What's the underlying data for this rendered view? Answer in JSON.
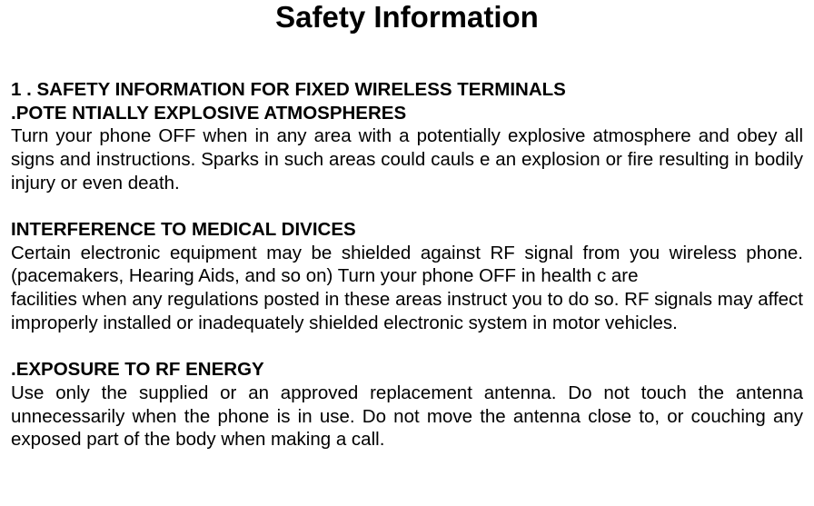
{
  "title": "Safety Information",
  "section1": {
    "header1": "1 . SAFETY INFORMATION FOR FIXED WIRELESS TERMINALS",
    "header2": ".POTE NTIALLY EXPLOSIVE ATMOSPHERES",
    "body": "Turn your phone OFF when in any area with a potentially explosive atmosphere and obey all signs and instructions. Sparks in such areas could cauls e an explosion or fire resulting in bodily injury or even death."
  },
  "section2": {
    "header": "INTERFERENCE TO MEDICAL DIVICES",
    "body1": "Certain electronic equipment may be shielded against RF signal from you wireless phone. (pacemakers, Hearing Aids, and so on) Turn your phone OFF in health c are",
    "body2": "facilities when any regulations posted in these areas instruct you to do so. RF signals may affect improperly installed or inadequately shielded electronic system in motor vehicles."
  },
  "section3": {
    "header": ".EXPOSURE TO RF ENERGY",
    "body": "Use only the supplied or an approved replacement antenna. Do not touch the antenna unnecessarily when the phone is in use. Do not move the antenna close to, or couching any exposed part of the body when making a call."
  },
  "colors": {
    "text": "#000000",
    "background": "#ffffff"
  },
  "typography": {
    "title_fontsize": 33,
    "body_fontsize": 20.5,
    "font_family": "Arial",
    "title_weight": "bold",
    "header_weight": "bold",
    "body_weight": "normal",
    "line_height": 1.25,
    "body_align": "justify"
  }
}
